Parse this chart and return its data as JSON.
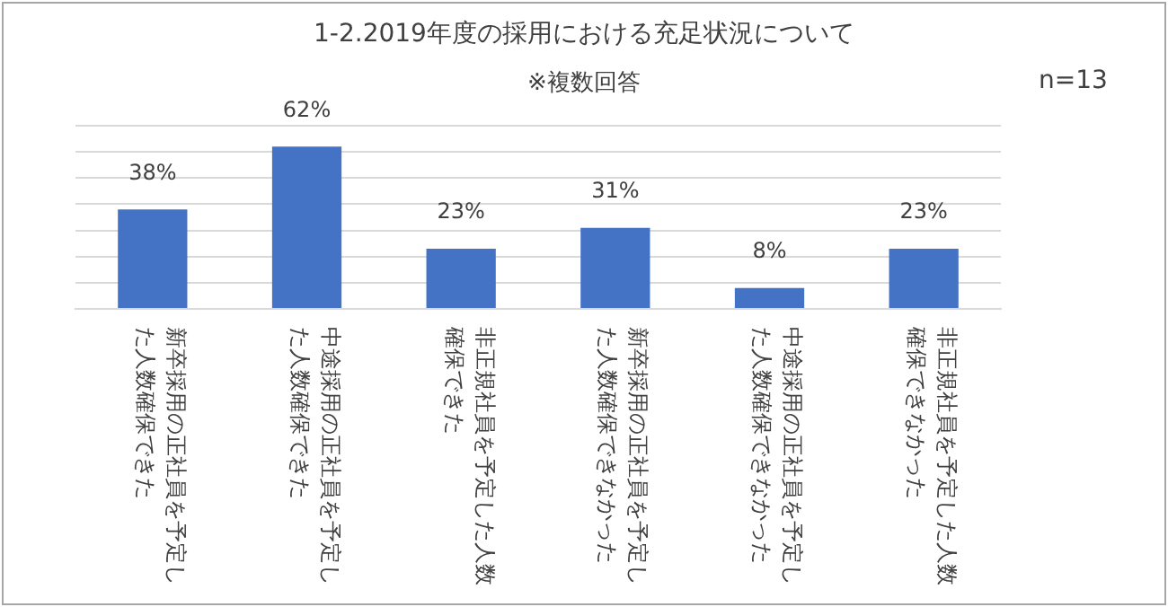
{
  "chart_data": {
    "type": "bar",
    "title": "1-2.2019年度の採用における充足状況について",
    "annotations": [
      "※複数回答",
      "n=13"
    ],
    "categories": [
      "新卒採用の正社員を予定した人数確保できた",
      "中途採用の正社員を予定した人数確保できた",
      "非正規社員を予定した人数確保できた",
      "新卒採用の正社員を予定した人数確保できなかった",
      "中途採用の正社員を予定した人数確保できなかった",
      "非正規社員を予定した人数確保できなかった"
    ],
    "values": [
      38,
      62,
      23,
      31,
      8,
      23
    ],
    "value_labels": [
      "38%",
      "62%",
      "23%",
      "31%",
      "8%",
      "23%"
    ],
    "color": "#4472c4",
    "ylim": [
      0,
      70
    ],
    "yticks": [
      {
        "value": 0,
        "label": null
      },
      {
        "value": 10,
        "label": null
      },
      {
        "value": 20,
        "label": null
      },
      {
        "value": 30,
        "label": null
      },
      {
        "value": 40,
        "label": null
      },
      {
        "value": 50,
        "label": null
      },
      {
        "value": 60,
        "label": null
      },
      {
        "value": 70,
        "label": null
      }
    ],
    "grid": "y",
    "tick_labels": "x",
    "legend": false
  }
}
